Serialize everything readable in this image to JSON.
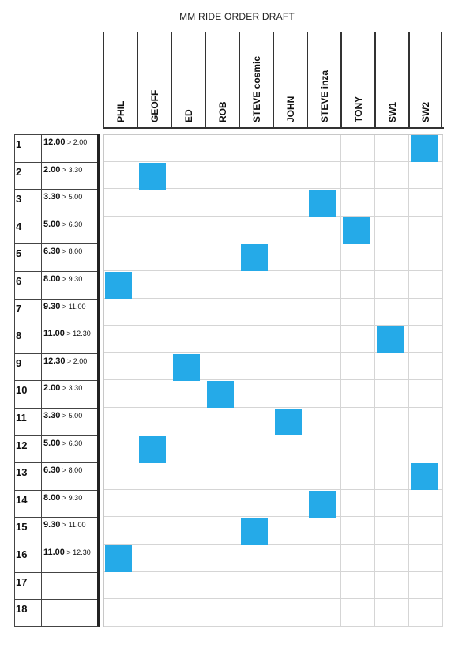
{
  "title": "MM RIDE ORDER DRAFT",
  "colors": {
    "mark": "#25aae8"
  },
  "riders": [
    "PHIL",
    "GEOFF",
    "ED",
    "ROB",
    "STEVE  cosmic",
    "JOHN",
    "STEVE  inza",
    "TONY",
    "SW1",
    "SW2"
  ],
  "rows": [
    {
      "num": "1",
      "start": "12.00",
      "end": "> 2.00",
      "rider": 9
    },
    {
      "num": "2",
      "start": "2.00",
      "end": "> 3.30",
      "rider": 1
    },
    {
      "num": "3",
      "start": "3.30",
      "end": "> 5.00",
      "rider": 6
    },
    {
      "num": "4",
      "start": "5.00",
      "end": "> 6.30",
      "rider": 7
    },
    {
      "num": "5",
      "start": "6.30",
      "end": "> 8.00",
      "rider": 4
    },
    {
      "num": "6",
      "start": "8.00",
      "end": "> 9.30",
      "rider": 0
    },
    {
      "num": "7",
      "start": "9.30",
      "end": "> 11.00",
      "rider": null
    },
    {
      "num": "8",
      "start": "11.00",
      "end": "> 12.30",
      "rider": 8
    },
    {
      "num": "9",
      "start": "12.30",
      "end": "> 2.00",
      "rider": 2
    },
    {
      "num": "10",
      "start": "2.00",
      "end": "> 3.30",
      "rider": 3
    },
    {
      "num": "11",
      "start": "3.30",
      "end": "> 5.00",
      "rider": 5
    },
    {
      "num": "12",
      "start": "5.00",
      "end": "> 6.30",
      "rider": 1
    },
    {
      "num": "13",
      "start": "6.30",
      "end": "> 8.00",
      "rider": 9
    },
    {
      "num": "14",
      "start": "8.00",
      "end": "> 9.30",
      "rider": 6
    },
    {
      "num": "15",
      "start": "9.30",
      "end": "> 11.00",
      "rider": 4
    },
    {
      "num": "16",
      "start": "11.00",
      "end": "> 12.30",
      "rider": 0
    },
    {
      "num": "17",
      "start": "",
      "end": "",
      "rider": null
    },
    {
      "num": "18",
      "start": "",
      "end": "",
      "rider": null
    }
  ]
}
